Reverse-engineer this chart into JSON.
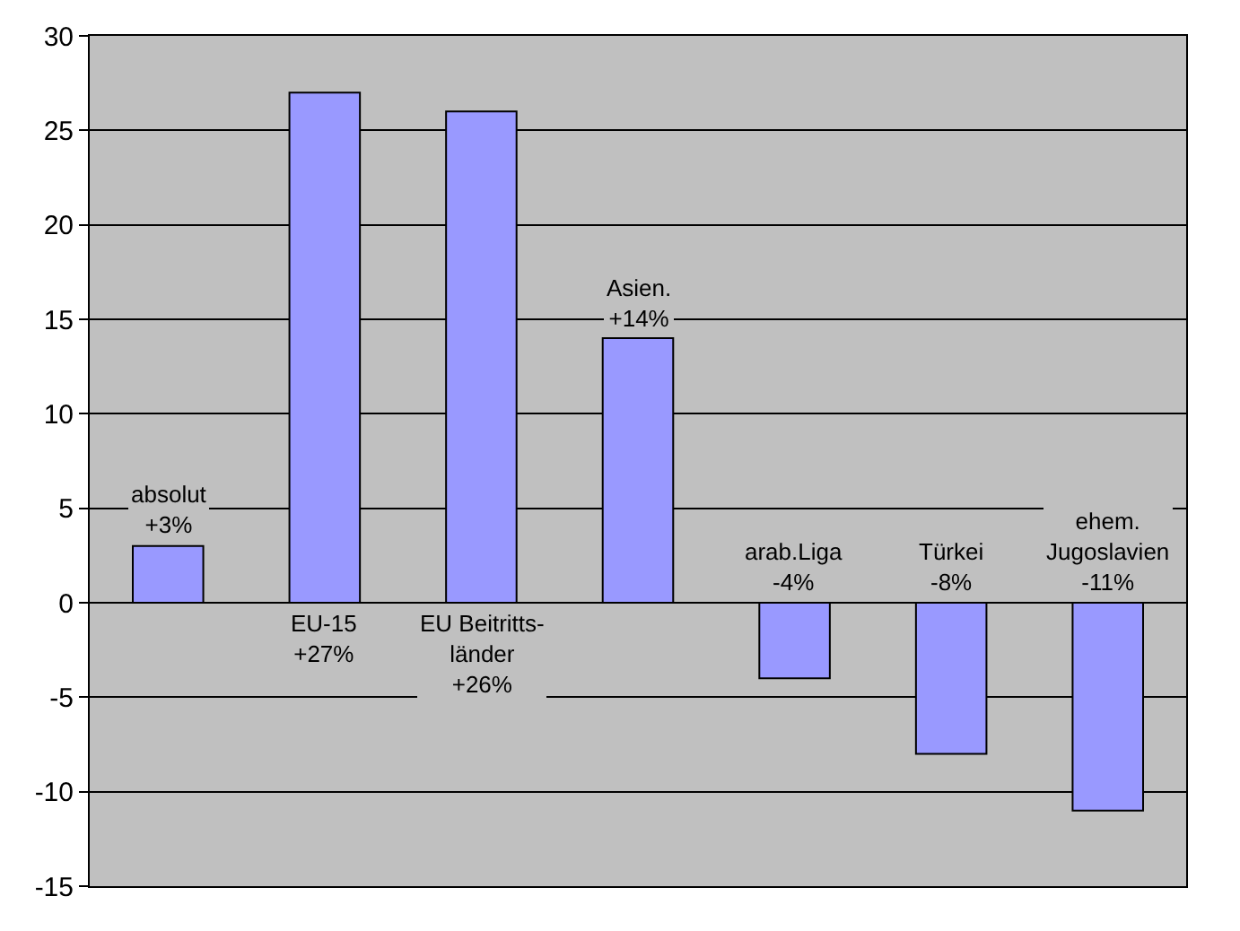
{
  "chart_data": {
    "type": "bar",
    "categories": [
      null,
      null,
      null,
      null,
      null,
      null,
      null
    ],
    "values": [
      3,
      27,
      26,
      14,
      -4,
      -8,
      -11
    ],
    "value_labels": [
      "absolut\n+3%",
      "EU-15\n+27%",
      "EU Beitritts-\nländer\n+26%",
      "Asien.\n+14%",
      "arab.Liga\n-4%",
      "Türkei\n-8%",
      "ehem.\nJugoslavien\n-11%"
    ],
    "color": "#9999ff",
    "ylim": [
      -15,
      30
    ],
    "yticks": [
      -15,
      -10,
      -5,
      0,
      5,
      10,
      15,
      20,
      25,
      30
    ],
    "grid": "y",
    "legend": false
  }
}
